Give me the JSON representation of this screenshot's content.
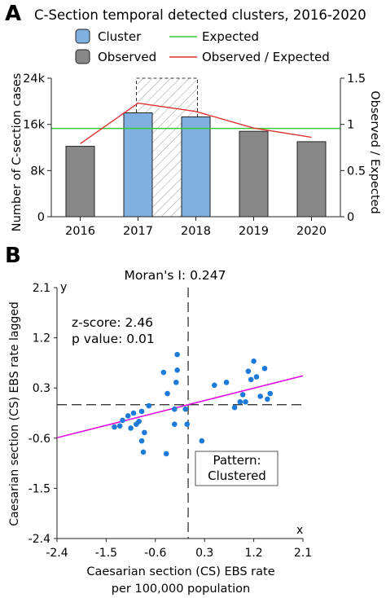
{
  "chart_data": [
    {
      "panel": "A",
      "type": "bar",
      "title": "C-Section temporal detected clusters, 2016-2020",
      "categories": [
        "2016",
        "2017",
        "2018",
        "2019",
        "2020"
      ],
      "series": [
        {
          "name": "Cluster",
          "color": "#7fb0e0",
          "values": [
            null,
            18000,
            17300,
            null,
            null
          ]
        },
        {
          "name": "Observed",
          "color": "#888888",
          "values": [
            12200,
            null,
            null,
            14800,
            13000
          ]
        },
        {
          "name": "Expected",
          "color": "#33cc33",
          "values": [
            15300,
            15300,
            15300,
            15300,
            15300
          ]
        },
        {
          "name": "Observed / Expected",
          "color": "#e03030",
          "axis": "right",
          "values": [
            0.79,
            1.23,
            1.14,
            0.96,
            0.86
          ]
        }
      ],
      "cluster_window": [
        "2017",
        "2018"
      ],
      "ylabel": "Number of C-section cases",
      "ylabel_right": "Observed / Expected",
      "ylim": [
        0,
        24000
      ],
      "yticks": [
        "0",
        "8k",
        "16k",
        "24k"
      ],
      "ytick_values": [
        0,
        8000,
        16000,
        24000
      ],
      "ylim_right": [
        0,
        1.5
      ],
      "yticks_right": [
        "0",
        "0.5",
        "1",
        "1.5"
      ],
      "ytick_values_right": [
        0,
        0.5,
        1,
        1.5
      ],
      "legend_position": "top"
    },
    {
      "panel": "B",
      "type": "scatter",
      "title": "Moran's I: 0.247",
      "xlabel": "Caesarian section (CS) EBS rate",
      "xlabel_line2": "per 100,000 population",
      "ylabel": "Caesarian section (CS) EBS rate lagged",
      "x_axis_letter": "x",
      "y_axis_letter": "y",
      "xlim": [
        -2.4,
        2.1
      ],
      "ylim": [
        -2.4,
        2.1
      ],
      "xticks": [
        "-2.4",
        "-1.5",
        "-0.6",
        "0.3",
        "1.2",
        "2.1"
      ],
      "yticks": [
        "-2.4",
        "-1.5",
        "-0.6",
        "0.3",
        "1.2",
        "2.1"
      ],
      "tick_values": [
        -2.4,
        -1.5,
        -0.6,
        0.3,
        1.2,
        2.1
      ],
      "stats": [
        "z-score: 2.46",
        "p value: 0.01"
      ],
      "pattern_label": [
        "Pattern:",
        "Clustered"
      ],
      "regression": {
        "slope": 0.247,
        "intercept": 0.0,
        "color": "#dd00dd"
      },
      "point_color": "#1e7ad8",
      "points": [
        [
          -1.35,
          -0.4
        ],
        [
          -1.25,
          -0.38
        ],
        [
          -1.2,
          -0.28
        ],
        [
          -1.1,
          -0.2
        ],
        [
          -1.0,
          -0.15
        ],
        [
          -0.95,
          -0.35
        ],
        [
          -0.9,
          -0.3
        ],
        [
          -1.05,
          -0.42
        ],
        [
          -0.85,
          -0.12
        ],
        [
          -0.8,
          -0.5
        ],
        [
          -0.85,
          -0.65
        ],
        [
          -0.82,
          -0.85
        ],
        [
          -0.72,
          -0.02
        ],
        [
          -0.45,
          0.58
        ],
        [
          -0.38,
          0.2
        ],
        [
          -0.25,
          -0.08
        ],
        [
          -0.2,
          0.62
        ],
        [
          -0.22,
          0.4
        ],
        [
          -0.2,
          0.9
        ],
        [
          -0.25,
          -0.35
        ],
        [
          -0.4,
          -0.88
        ],
        [
          -0.05,
          -0.08
        ],
        [
          -0.02,
          -0.35
        ],
        [
          0.25,
          -0.65
        ],
        [
          0.48,
          0.35
        ],
        [
          0.7,
          0.4
        ],
        [
          0.85,
          -0.05
        ],
        [
          0.95,
          0.05
        ],
        [
          1.0,
          0.18
        ],
        [
          1.05,
          0.05
        ],
        [
          1.1,
          0.6
        ],
        [
          1.15,
          0.45
        ],
        [
          1.2,
          0.78
        ],
        [
          1.25,
          0.5
        ],
        [
          1.32,
          0.15
        ],
        [
          1.4,
          0.65
        ],
        [
          1.45,
          0.1
        ],
        [
          1.5,
          0.2
        ]
      ]
    }
  ]
}
